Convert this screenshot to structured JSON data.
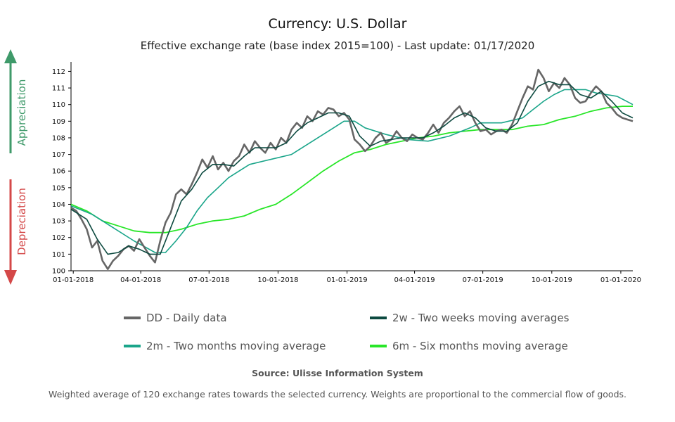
{
  "title": "Currency: U.S. Dollar",
  "subtitle": "Effective exchange rate (base index 2015=100) - Last update: 01/17/2020",
  "side_labels": {
    "appreciation": "Appreciation",
    "depreciation": "Depreciation"
  },
  "source": "Source: Ulisse Information System",
  "note": "Weighted average of 120 exchange rates towards the selected currency. Weights are proportional to the commercial flow of goods.",
  "colors": {
    "daily": "#666666",
    "two_weeks": "#0d4a40",
    "two_months": "#1aa58a",
    "six_months": "#28e628",
    "appreciation": "#3f9a6a",
    "depreciation": "#d44848",
    "axis": "#000000"
  },
  "chart_data": {
    "type": "line",
    "x_unit": "date",
    "ylim": [
      100,
      112.4
    ],
    "y_ticks": [
      100,
      101,
      102,
      103,
      104,
      105,
      106,
      107,
      108,
      109,
      110,
      111,
      112
    ],
    "x_ticks": [
      "01-01-2018",
      "04-01-2018",
      "07-01-2018",
      "10-01-2018",
      "01-01-2019",
      "04-01-2019",
      "07-01-2019",
      "10-01-2019",
      "01-01-2020"
    ],
    "x_range": [
      "2017-12-29",
      "2020-01-17"
    ],
    "grid": false,
    "legend": [
      {
        "key": "daily",
        "label": "DD - Daily data"
      },
      {
        "key": "two_weeks",
        "label": "2w - Two weeks moving averages"
      },
      {
        "key": "two_months",
        "label": "2m - Two months moving average"
      },
      {
        "key": "six_months",
        "label": "6m - Six months moving average"
      }
    ],
    "series": [
      {
        "key": "daily",
        "name": "DD - Daily data",
        "points": [
          [
            "2017-12-29",
            103.8
          ],
          [
            "2018-01-05",
            103.6
          ],
          [
            "2018-01-12",
            103.1
          ],
          [
            "2018-01-19",
            102.5
          ],
          [
            "2018-01-26",
            101.4
          ],
          [
            "2018-02-02",
            101.8
          ],
          [
            "2018-02-09",
            100.6
          ],
          [
            "2018-02-16",
            100.1
          ],
          [
            "2018-02-23",
            100.6
          ],
          [
            "2018-03-02",
            100.9
          ],
          [
            "2018-03-09",
            101.3
          ],
          [
            "2018-03-16",
            101.5
          ],
          [
            "2018-03-23",
            101.2
          ],
          [
            "2018-03-30",
            101.9
          ],
          [
            "2018-04-06",
            101.4
          ],
          [
            "2018-04-13",
            100.9
          ],
          [
            "2018-04-20",
            100.5
          ],
          [
            "2018-04-27",
            101.8
          ],
          [
            "2018-05-04",
            102.9
          ],
          [
            "2018-05-11",
            103.5
          ],
          [
            "2018-05-18",
            104.6
          ],
          [
            "2018-05-25",
            104.9
          ],
          [
            "2018-06-01",
            104.6
          ],
          [
            "2018-06-08",
            105.2
          ],
          [
            "2018-06-15",
            105.9
          ],
          [
            "2018-06-22",
            106.7
          ],
          [
            "2018-06-29",
            106.2
          ],
          [
            "2018-07-06",
            106.9
          ],
          [
            "2018-07-13",
            106.1
          ],
          [
            "2018-07-20",
            106.5
          ],
          [
            "2018-07-27",
            106.0
          ],
          [
            "2018-08-03",
            106.6
          ],
          [
            "2018-08-10",
            106.9
          ],
          [
            "2018-08-17",
            107.6
          ],
          [
            "2018-08-24",
            107.1
          ],
          [
            "2018-08-31",
            107.8
          ],
          [
            "2018-09-07",
            107.4
          ],
          [
            "2018-09-14",
            107.1
          ],
          [
            "2018-09-21",
            107.7
          ],
          [
            "2018-09-28",
            107.3
          ],
          [
            "2018-10-05",
            108.0
          ],
          [
            "2018-10-12",
            107.7
          ],
          [
            "2018-10-19",
            108.5
          ],
          [
            "2018-10-26",
            108.9
          ],
          [
            "2018-11-02",
            108.6
          ],
          [
            "2018-11-09",
            109.3
          ],
          [
            "2018-11-16",
            109.0
          ],
          [
            "2018-11-23",
            109.6
          ],
          [
            "2018-11-30",
            109.4
          ],
          [
            "2018-12-07",
            109.8
          ],
          [
            "2018-12-14",
            109.7
          ],
          [
            "2018-12-21",
            109.3
          ],
          [
            "2018-12-28",
            109.5
          ],
          [
            "2019-01-04",
            109.1
          ],
          [
            "2019-01-11",
            107.9
          ],
          [
            "2019-01-18",
            107.6
          ],
          [
            "2019-01-25",
            107.2
          ],
          [
            "2019-02-01",
            107.5
          ],
          [
            "2019-02-08",
            108.0
          ],
          [
            "2019-02-15",
            108.3
          ],
          [
            "2019-02-22",
            107.7
          ],
          [
            "2019-03-01",
            107.9
          ],
          [
            "2019-03-08",
            108.4
          ],
          [
            "2019-03-15",
            108.0
          ],
          [
            "2019-03-22",
            107.8
          ],
          [
            "2019-03-29",
            108.2
          ],
          [
            "2019-04-05",
            108.0
          ],
          [
            "2019-04-12",
            107.9
          ],
          [
            "2019-04-19",
            108.3
          ],
          [
            "2019-04-26",
            108.8
          ],
          [
            "2019-05-03",
            108.3
          ],
          [
            "2019-05-10",
            108.9
          ],
          [
            "2019-05-17",
            109.2
          ],
          [
            "2019-05-24",
            109.6
          ],
          [
            "2019-05-31",
            109.9
          ],
          [
            "2019-06-07",
            109.3
          ],
          [
            "2019-06-14",
            109.6
          ],
          [
            "2019-06-21",
            108.9
          ],
          [
            "2019-06-28",
            108.4
          ],
          [
            "2019-07-05",
            108.5
          ],
          [
            "2019-07-12",
            108.2
          ],
          [
            "2019-07-19",
            108.4
          ],
          [
            "2019-07-26",
            108.5
          ],
          [
            "2019-08-02",
            108.3
          ],
          [
            "2019-08-09",
            108.8
          ],
          [
            "2019-08-16",
            109.6
          ],
          [
            "2019-08-23",
            110.4
          ],
          [
            "2019-08-30",
            111.1
          ],
          [
            "2019-09-06",
            110.9
          ],
          [
            "2019-09-13",
            112.1
          ],
          [
            "2019-09-20",
            111.6
          ],
          [
            "2019-09-27",
            110.8
          ],
          [
            "2019-10-04",
            111.3
          ],
          [
            "2019-10-11",
            111.0
          ],
          [
            "2019-10-18",
            111.6
          ],
          [
            "2019-10-25",
            111.2
          ],
          [
            "2019-11-01",
            110.4
          ],
          [
            "2019-11-08",
            110.1
          ],
          [
            "2019-11-15",
            110.2
          ],
          [
            "2019-11-22",
            110.7
          ],
          [
            "2019-11-29",
            111.1
          ],
          [
            "2019-12-06",
            110.8
          ],
          [
            "2019-12-13",
            110.1
          ],
          [
            "2019-12-20",
            109.8
          ],
          [
            "2019-12-27",
            109.4
          ],
          [
            "2020-01-03",
            109.2
          ],
          [
            "2020-01-10",
            109.1
          ],
          [
            "2020-01-17",
            109.0
          ]
        ]
      },
      {
        "key": "two_weeks",
        "name": "2w - Two weeks moving averages",
        "points": [
          [
            "2017-12-29",
            103.7
          ],
          [
            "2018-01-19",
            103.1
          ],
          [
            "2018-02-02",
            101.9
          ],
          [
            "2018-02-16",
            101.0
          ],
          [
            "2018-03-02",
            101.1
          ],
          [
            "2018-03-16",
            101.5
          ],
          [
            "2018-03-30",
            101.3
          ],
          [
            "2018-04-13",
            101.0
          ],
          [
            "2018-04-27",
            101.0
          ],
          [
            "2018-05-11",
            102.6
          ],
          [
            "2018-05-25",
            104.2
          ],
          [
            "2018-06-08",
            104.9
          ],
          [
            "2018-06-22",
            105.9
          ],
          [
            "2018-07-06",
            106.4
          ],
          [
            "2018-07-20",
            106.4
          ],
          [
            "2018-08-03",
            106.3
          ],
          [
            "2018-08-17",
            106.9
          ],
          [
            "2018-08-31",
            107.4
          ],
          [
            "2018-09-14",
            107.4
          ],
          [
            "2018-09-28",
            107.4
          ],
          [
            "2018-10-12",
            107.7
          ],
          [
            "2018-10-26",
            108.4
          ],
          [
            "2018-11-09",
            108.9
          ],
          [
            "2018-11-23",
            109.2
          ],
          [
            "2018-12-07",
            109.5
          ],
          [
            "2018-12-21",
            109.5
          ],
          [
            "2019-01-04",
            109.3
          ],
          [
            "2019-01-18",
            108.1
          ],
          [
            "2019-02-01",
            107.5
          ],
          [
            "2019-02-15",
            107.8
          ],
          [
            "2019-03-01",
            107.9
          ],
          [
            "2019-03-15",
            108.0
          ],
          [
            "2019-03-29",
            108.0
          ],
          [
            "2019-04-12",
            108.0
          ],
          [
            "2019-04-26",
            108.3
          ],
          [
            "2019-05-10",
            108.7
          ],
          [
            "2019-05-24",
            109.2
          ],
          [
            "2019-06-07",
            109.5
          ],
          [
            "2019-06-21",
            109.2
          ],
          [
            "2019-07-05",
            108.6
          ],
          [
            "2019-07-19",
            108.4
          ],
          [
            "2019-08-02",
            108.4
          ],
          [
            "2019-08-16",
            108.9
          ],
          [
            "2019-08-30",
            110.2
          ],
          [
            "2019-09-13",
            111.1
          ],
          [
            "2019-09-27",
            111.4
          ],
          [
            "2019-10-11",
            111.2
          ],
          [
            "2019-10-25",
            111.2
          ],
          [
            "2019-11-08",
            110.6
          ],
          [
            "2019-11-22",
            110.4
          ],
          [
            "2019-12-06",
            110.8
          ],
          [
            "2019-12-20",
            110.2
          ],
          [
            "2020-01-03",
            109.5
          ],
          [
            "2020-01-17",
            109.2
          ]
        ]
      },
      {
        "key": "two_months",
        "name": "2m - Two months moving average",
        "points": [
          [
            "2017-12-29",
            103.9
          ],
          [
            "2018-01-26",
            103.4
          ],
          [
            "2018-02-23",
            102.6
          ],
          [
            "2018-03-23",
            101.8
          ],
          [
            "2018-04-20",
            101.1
          ],
          [
            "2018-05-04",
            101.1
          ],
          [
            "2018-05-18",
            101.8
          ],
          [
            "2018-06-01",
            102.6
          ],
          [
            "2018-06-15",
            103.6
          ],
          [
            "2018-06-29",
            104.4
          ],
          [
            "2018-07-13",
            105.0
          ],
          [
            "2018-07-27",
            105.6
          ],
          [
            "2018-08-10",
            106.0
          ],
          [
            "2018-08-24",
            106.4
          ],
          [
            "2018-09-21",
            106.7
          ],
          [
            "2018-10-19",
            107.0
          ],
          [
            "2018-11-16",
            107.8
          ],
          [
            "2018-12-14",
            108.6
          ],
          [
            "2018-12-28",
            109.0
          ],
          [
            "2019-01-11",
            109.0
          ],
          [
            "2019-01-25",
            108.6
          ],
          [
            "2019-02-22",
            108.2
          ],
          [
            "2019-03-22",
            107.9
          ],
          [
            "2019-04-19",
            107.8
          ],
          [
            "2019-05-17",
            108.1
          ],
          [
            "2019-06-14",
            108.6
          ],
          [
            "2019-06-28",
            108.9
          ],
          [
            "2019-07-12",
            108.9
          ],
          [
            "2019-07-26",
            108.9
          ],
          [
            "2019-08-23",
            109.2
          ],
          [
            "2019-09-06",
            109.7
          ],
          [
            "2019-09-20",
            110.2
          ],
          [
            "2019-10-04",
            110.6
          ],
          [
            "2019-10-18",
            110.9
          ],
          [
            "2019-11-15",
            110.9
          ],
          [
            "2019-11-29",
            110.7
          ],
          [
            "2019-12-13",
            110.6
          ],
          [
            "2019-12-27",
            110.5
          ],
          [
            "2020-01-17",
            110.0
          ]
        ]
      },
      {
        "key": "six_months",
        "name": "6m - Six months moving average",
        "points": [
          [
            "2017-12-29",
            104.0
          ],
          [
            "2018-01-19",
            103.6
          ],
          [
            "2018-02-09",
            103.0
          ],
          [
            "2018-03-02",
            102.7
          ],
          [
            "2018-03-23",
            102.4
          ],
          [
            "2018-04-13",
            102.3
          ],
          [
            "2018-05-04",
            102.3
          ],
          [
            "2018-05-25",
            102.5
          ],
          [
            "2018-06-15",
            102.8
          ],
          [
            "2018-07-06",
            103.0
          ],
          [
            "2018-07-27",
            103.1
          ],
          [
            "2018-08-17",
            103.3
          ],
          [
            "2018-09-07",
            103.7
          ],
          [
            "2018-09-28",
            104.0
          ],
          [
            "2018-10-19",
            104.6
          ],
          [
            "2018-11-09",
            105.3
          ],
          [
            "2018-11-30",
            106.0
          ],
          [
            "2018-12-21",
            106.6
          ],
          [
            "2019-01-11",
            107.1
          ],
          [
            "2019-02-01",
            107.3
          ],
          [
            "2019-02-22",
            107.6
          ],
          [
            "2019-03-15",
            107.8
          ],
          [
            "2019-04-05",
            108.0
          ],
          [
            "2019-04-26",
            108.1
          ],
          [
            "2019-05-17",
            108.3
          ],
          [
            "2019-06-07",
            108.4
          ],
          [
            "2019-06-28",
            108.5
          ],
          [
            "2019-07-19",
            108.5
          ],
          [
            "2019-08-09",
            108.5
          ],
          [
            "2019-08-30",
            108.7
          ],
          [
            "2019-09-20",
            108.8
          ],
          [
            "2019-10-11",
            109.1
          ],
          [
            "2019-11-01",
            109.3
          ],
          [
            "2019-11-22",
            109.6
          ],
          [
            "2019-12-13",
            109.8
          ],
          [
            "2020-01-03",
            109.9
          ],
          [
            "2020-01-17",
            109.9
          ]
        ]
      }
    ]
  }
}
